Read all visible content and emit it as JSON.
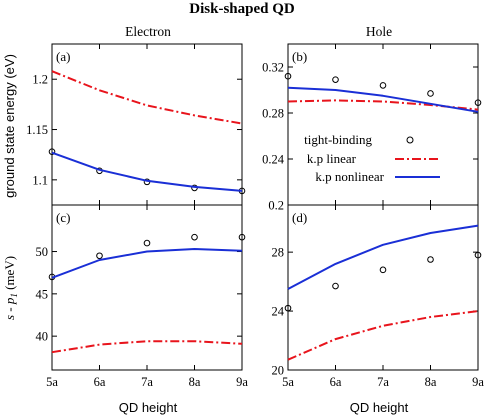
{
  "figure": {
    "title": "Disk-shaped QD",
    "col_titles": [
      "Electron",
      "Hole"
    ],
    "ylabel_top": "ground state energy (eV)",
    "ylabel_bottom": {
      "prefix": "s - p",
      "sub": "1",
      "suffix": " (meV)"
    },
    "xlabel": "QD height",
    "colors": {
      "tight_binding": "#000000",
      "kp_linear": "#e8141c",
      "kp_nonlinear": "#1a2fd6"
    }
  },
  "legend": {
    "entries": [
      {
        "key": "tb",
        "label": "tight-binding"
      },
      {
        "key": "lin",
        "label": "k.p linear"
      },
      {
        "key": "nl",
        "label": "k.p nonlinear"
      }
    ]
  },
  "chart_data": [
    {
      "panel": "(a)",
      "type": "line",
      "categories": [
        "5a",
        "6a",
        "7a",
        "8a",
        "9a"
      ],
      "ylim": [
        1.075,
        1.235
      ],
      "yticks": [
        1.1,
        1.15,
        1.2
      ],
      "ytick_labels": [
        "1.1",
        "1.15",
        "1.2"
      ],
      "series": [
        {
          "name": "tight-binding",
          "style": "markers",
          "values": [
            1.128,
            1.109,
            1.098,
            1.092,
            1.089
          ]
        },
        {
          "name": "k.p linear",
          "style": "dashdot",
          "values": [
            1.208,
            1.189,
            1.174,
            1.164,
            1.156
          ]
        },
        {
          "name": "k.p nonlinear",
          "style": "solid",
          "values": [
            1.127,
            1.11,
            1.099,
            1.093,
            1.089
          ]
        }
      ]
    },
    {
      "panel": "(b)",
      "type": "line",
      "categories": [
        "5a",
        "6a",
        "7a",
        "8a",
        "9a"
      ],
      "ylim": [
        0.2,
        0.34
      ],
      "yticks": [
        0.2,
        0.24,
        0.28,
        0.32
      ],
      "ytick_labels": [
        "0.2",
        "0.24",
        "0.28",
        "0.32"
      ],
      "series": [
        {
          "name": "tight-binding",
          "style": "markers",
          "values": [
            0.312,
            0.309,
            0.304,
            0.297,
            0.289
          ]
        },
        {
          "name": "k.p linear",
          "style": "dashdot",
          "values": [
            0.29,
            0.291,
            0.29,
            0.287,
            0.283
          ]
        },
        {
          "name": "k.p nonlinear",
          "style": "solid",
          "values": [
            0.302,
            0.3,
            0.295,
            0.288,
            0.281
          ]
        }
      ]
    },
    {
      "panel": "(c)",
      "type": "line",
      "categories": [
        "5a",
        "6a",
        "7a",
        "8a",
        "9a"
      ],
      "ylim": [
        36,
        55.5
      ],
      "yticks": [
        40,
        45,
        50
      ],
      "ytick_labels": [
        "40",
        "45",
        "50"
      ],
      "series": [
        {
          "name": "tight-binding",
          "style": "markers",
          "values": [
            47.0,
            49.5,
            51.0,
            51.7,
            51.7
          ]
        },
        {
          "name": "k.p linear",
          "style": "dashdot",
          "values": [
            38.1,
            39.0,
            39.4,
            39.4,
            39.1
          ]
        },
        {
          "name": "k.p nonlinear",
          "style": "solid",
          "values": [
            46.9,
            49.0,
            50.0,
            50.3,
            50.1
          ]
        }
      ]
    },
    {
      "panel": "(d)",
      "type": "line",
      "categories": [
        "5a",
        "6a",
        "7a",
        "8a",
        "9a"
      ],
      "ylim": [
        20,
        31.2
      ],
      "yticks": [
        20,
        24,
        28
      ],
      "ytick_labels": [
        "20",
        "24",
        "28"
      ],
      "series": [
        {
          "name": "tight-binding",
          "style": "markers",
          "values": [
            24.2,
            25.7,
            26.8,
            27.5,
            27.8
          ]
        },
        {
          "name": "k.p linear",
          "style": "dashdot",
          "values": [
            20.7,
            22.1,
            23.0,
            23.6,
            24.0
          ]
        },
        {
          "name": "k.p nonlinear",
          "style": "solid",
          "values": [
            25.5,
            27.2,
            28.5,
            29.3,
            29.8
          ]
        }
      ]
    }
  ]
}
